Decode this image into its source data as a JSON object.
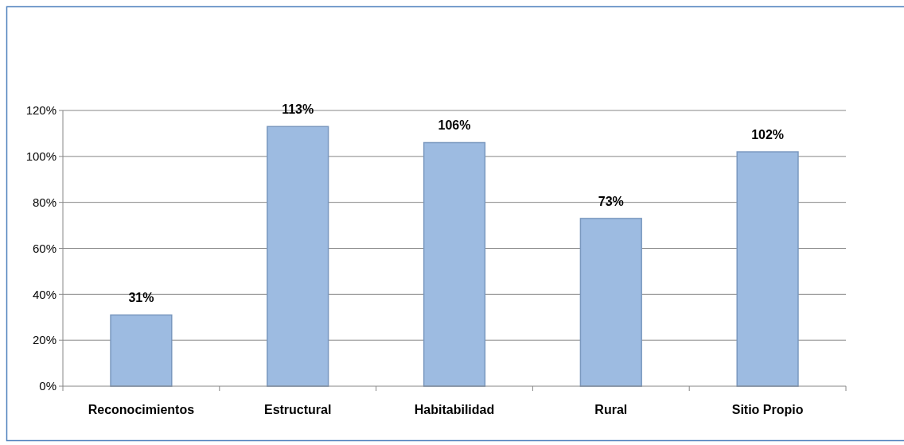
{
  "chart_data": {
    "type": "bar",
    "categories": [
      "Reconocimientos",
      "Estructural",
      "Habitabilidad",
      "Rural",
      "Sitio Propio"
    ],
    "values": [
      31,
      113,
      106,
      73,
      102
    ],
    "value_labels": [
      "31%",
      "113%",
      "106%",
      "73%",
      "102%"
    ],
    "color": "#9dbbe1",
    "ylim": [
      0,
      120
    ],
    "yticks": [
      {
        "value": 0,
        "label": "0%"
      },
      {
        "value": 20,
        "label": "20%"
      },
      {
        "value": 40,
        "label": "40%"
      },
      {
        "value": 60,
        "label": "60%"
      },
      {
        "value": 80,
        "label": "80%"
      },
      {
        "value": 100,
        "label": "100%"
      },
      {
        "value": 120,
        "label": "120%"
      }
    ],
    "grid": "y"
  }
}
